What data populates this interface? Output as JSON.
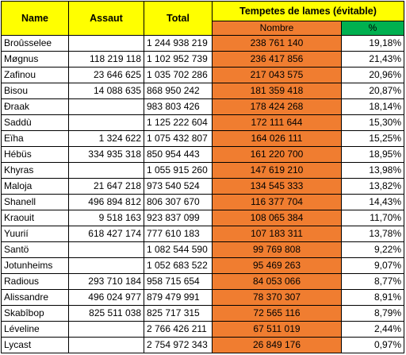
{
  "headers": {
    "name": "Name",
    "assaut": "Assaut",
    "total": "Total",
    "tempetes": "Tempetes de lames (évitable)",
    "nombre": "Nombre",
    "pct": "%"
  },
  "colors": {
    "header_yellow": "#ffff00",
    "nombre_orange": "#f07d30",
    "pct_green": "#00b050"
  },
  "rows": [
    {
      "name": "Broûsselee",
      "assaut": "",
      "total": "1 244 938 219",
      "nombre": "238 761 140",
      "pct": "19,18%"
    },
    {
      "name": "Møgnus",
      "assaut": "118 219 118",
      "total": "1 102 952 739",
      "nombre": "236 417 856",
      "pct": "21,43%"
    },
    {
      "name": "Zafinou",
      "assaut": "23 646 625",
      "total": "1 035 702 286",
      "nombre": "217 043 575",
      "pct": "20,96%"
    },
    {
      "name": "Bisou",
      "assaut": "14 088 635",
      "total": "868 950 242",
      "nombre": "181 359 418",
      "pct": "20,87%"
    },
    {
      "name": "Ðraak",
      "assaut": "",
      "total": "983 803 426",
      "nombre": "178 424 268",
      "pct": "18,14%"
    },
    {
      "name": "Saddù",
      "assaut": "",
      "total": "1 125 222 604",
      "nombre": "172 111 644",
      "pct": "15,30%"
    },
    {
      "name": "Eïha",
      "assaut": "1 324 622",
      "total": "1 075 432 807",
      "nombre": "164 026 111",
      "pct": "15,25%"
    },
    {
      "name": "Hébüs",
      "assaut": "334 935 318",
      "total": "850 954 443",
      "nombre": "161 220 700",
      "pct": "18,95%"
    },
    {
      "name": "Khyras",
      "assaut": "",
      "total": "1 055 915 260",
      "nombre": "147 619 210",
      "pct": "13,98%"
    },
    {
      "name": "Maloja",
      "assaut": "21 647 218",
      "total": "973 540 524",
      "nombre": "134 545 333",
      "pct": "13,82%"
    },
    {
      "name": "Shanell",
      "assaut": "496 894 812",
      "total": "806 307 670",
      "nombre": "116 377 704",
      "pct": "14,43%"
    },
    {
      "name": "Kraouit",
      "assaut": "9 518 163",
      "total": "923 837 099",
      "nombre": "108 065 384",
      "pct": "11,70%"
    },
    {
      "name": "Yuurií",
      "assaut": "618 427 174",
      "total": "777 610 183",
      "nombre": "107 183 311",
      "pct": "13,78%"
    },
    {
      "name": "Santö",
      "assaut": "",
      "total": "1 082 544 590",
      "nombre": "99 769 808",
      "pct": "9,22%"
    },
    {
      "name": "Jotunheims",
      "assaut": "",
      "total": "1 052 683 522",
      "nombre": "95 469 263",
      "pct": "9,07%"
    },
    {
      "name": "Radious",
      "assaut": "293 710 184",
      "total": "958 715 654",
      "nombre": "84 053 066",
      "pct": "8,77%"
    },
    {
      "name": "Alissandre",
      "assaut": "496 024 977",
      "total": "879 479 991",
      "nombre": "78 370 307",
      "pct": "8,91%"
    },
    {
      "name": "Skabîbop",
      "assaut": "825 511 038",
      "total": "825 717 315",
      "nombre": "72 565 116",
      "pct": "8,79%"
    },
    {
      "name": "Léveline",
      "assaut": "",
      "total": "2 766 426 211",
      "nombre": "67 511 019",
      "pct": "2,44%"
    },
    {
      "name": "Lycast",
      "assaut": "",
      "total": "2 754 972 343",
      "nombre": "26 849 176",
      "pct": "0,97%"
    }
  ]
}
